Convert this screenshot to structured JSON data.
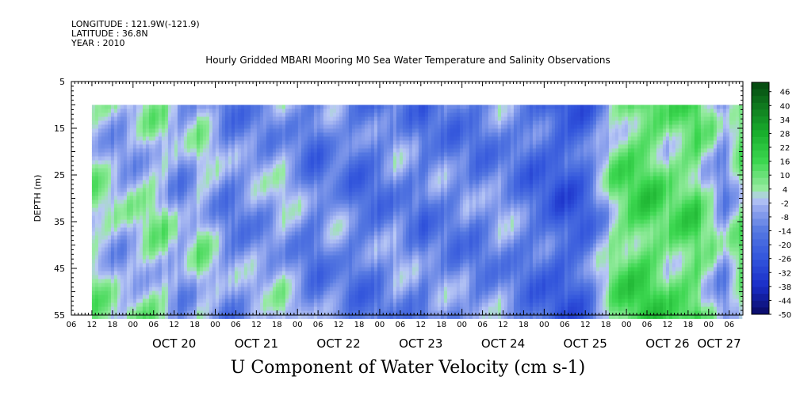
{
  "header": {
    "longitude": "LONGITUDE : 121.9W(-121.9)",
    "latitude": "LATITUDE : 36.8N",
    "year": "YEAR : 2010"
  },
  "plot_title": "Hourly Gridded MBARI Mooring M0 Sea Water Temperature and Salinity Observations",
  "bottom_title": "U Component of Water Velocity (cm s-1)",
  "chart_data": {
    "type": "heatmap",
    "title": "Hourly Gridded MBARI Mooring M0 Sea Water Temperature and Salinity Observations",
    "variable": "U Component of Water Velocity (cm s-1)",
    "xlabel": "",
    "ylabel": "DEPTH (m)",
    "y_axis": {
      "range": [
        5,
        55
      ],
      "inverted": true,
      "tick_labels": [
        "5",
        "15",
        "25",
        "35",
        "45",
        "55"
      ],
      "tick_values": [
        5,
        15,
        25,
        35,
        45,
        55
      ]
    },
    "x_axis": {
      "start": "2010-10-19 06:00",
      "end": "2010-10-27 10:00",
      "hour_tick_labels": [
        "06",
        "12",
        "18",
        "00",
        "06",
        "12",
        "18",
        "00",
        "06",
        "12",
        "18",
        "00",
        "06",
        "12",
        "18",
        "00",
        "06",
        "12",
        "18",
        "00",
        "06",
        "12",
        "18",
        "00",
        "06",
        "12",
        "18",
        "00",
        "06",
        "12",
        "18",
        "00",
        "06"
      ],
      "date_labels": [
        "OCT 20",
        "OCT 21",
        "OCT 22",
        "OCT 23",
        "OCT 24",
        "OCT 25",
        "OCT 26",
        "OCT 27"
      ]
    },
    "data_extent": {
      "time_start": "2010-10-19 12:00",
      "time_end": "2010-10-27 09:00",
      "depth_top": 10,
      "depth_bottom": 55
    },
    "colorbar": {
      "labels": [
        "46",
        "40",
        "34",
        "28",
        "22",
        "16",
        "10",
        "4",
        "-2",
        "-8",
        "-14",
        "-20",
        "-26",
        "-32",
        "-38",
        "-44",
        "-50"
      ],
      "min": -50,
      "max": 50
    },
    "approx_column_mean_velocity": [
      {
        "time": "2010-10-19 14:00",
        "value": 4
      },
      {
        "time": "2010-10-19 20:00",
        "value": -5
      },
      {
        "time": "2010-10-20 06:00",
        "value": 5
      },
      {
        "time": "2010-10-20 14:00",
        "value": -8
      },
      {
        "time": "2010-10-20 20:00",
        "value": 3
      },
      {
        "time": "2010-10-21 04:00",
        "value": -12
      },
      {
        "time": "2010-10-21 12:00",
        "value": -6
      },
      {
        "time": "2010-10-21 20:00",
        "value": -3
      },
      {
        "time": "2010-10-22 04:00",
        "value": -14
      },
      {
        "time": "2010-10-22 12:00",
        "value": -10
      },
      {
        "time": "2010-10-22 20:00",
        "value": -16
      },
      {
        "time": "2010-10-23 04:00",
        "value": -8
      },
      {
        "time": "2010-10-23 12:00",
        "value": -14
      },
      {
        "time": "2010-10-23 20:00",
        "value": -10
      },
      {
        "time": "2010-10-24 04:00",
        "value": -12
      },
      {
        "time": "2010-10-24 12:00",
        "value": -6
      },
      {
        "time": "2010-10-24 20:00",
        "value": -16
      },
      {
        "time": "2010-10-25 04:00",
        "value": -22
      },
      {
        "time": "2010-10-25 12:00",
        "value": -18
      },
      {
        "time": "2010-10-25 20:00",
        "value": 6
      },
      {
        "time": "2010-10-26 04:00",
        "value": 14
      },
      {
        "time": "2010-10-26 12:00",
        "value": 8
      },
      {
        "time": "2010-10-26 20:00",
        "value": 12
      },
      {
        "time": "2010-10-27 04:00",
        "value": -8
      },
      {
        "time": "2010-10-27 08:00",
        "value": 6
      }
    ]
  }
}
